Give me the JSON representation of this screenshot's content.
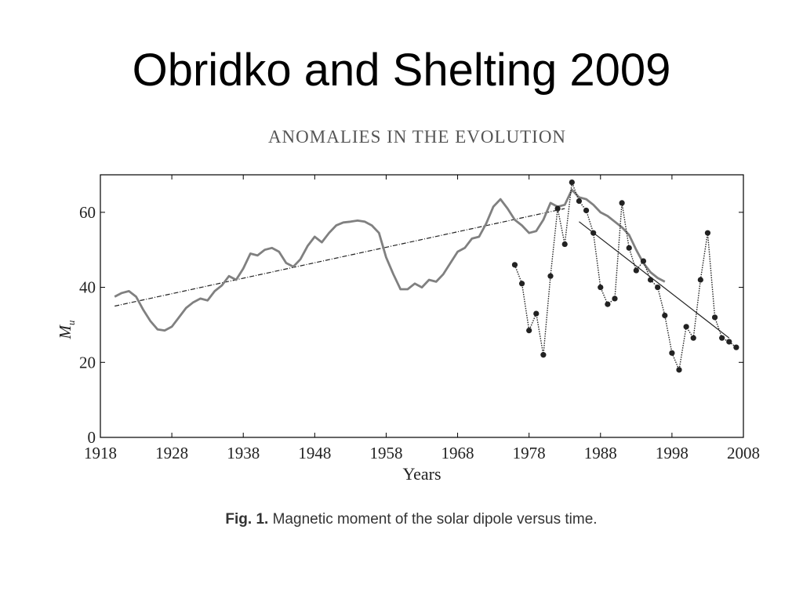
{
  "slide": {
    "title": "Obridko and Shelting 2009",
    "figure_header": "ANOMALIES IN THE EVOLUTION",
    "caption_label": "Fig. 1.",
    "caption_text": "Magnetic moment of the solar dipole versus time."
  },
  "colors": {
    "smooth_series": "#808080",
    "marker_series": "#222222",
    "axis": "#000000"
  },
  "chart_data": {
    "type": "line",
    "xlabel": "Years",
    "ylabel": "M_u",
    "xlim": [
      1918,
      2008
    ],
    "ylim": [
      0,
      70
    ],
    "xticks": [
      1918,
      1928,
      1938,
      1948,
      1958,
      1968,
      1978,
      1988,
      1998,
      2008
    ],
    "yticks": [
      0,
      20,
      40,
      60
    ],
    "grid": false,
    "series": [
      {
        "style": "smooth-gray",
        "points": [
          [
            1920,
            37.5
          ],
          [
            1921,
            38.5
          ],
          [
            1922,
            39
          ],
          [
            1923,
            37.5
          ],
          [
            1924,
            34
          ],
          [
            1925,
            31
          ],
          [
            1926,
            28.8
          ],
          [
            1927,
            28.5
          ],
          [
            1928,
            29.5
          ],
          [
            1929,
            32
          ],
          [
            1930,
            34.5
          ],
          [
            1931,
            36
          ],
          [
            1932,
            37
          ],
          [
            1933,
            36.5
          ],
          [
            1934,
            39
          ],
          [
            1935,
            40.5
          ],
          [
            1936,
            43
          ],
          [
            1937,
            42
          ],
          [
            1938,
            45
          ],
          [
            1939,
            49
          ],
          [
            1940,
            48.5
          ],
          [
            1941,
            50
          ],
          [
            1942,
            50.5
          ],
          [
            1943,
            49.5
          ],
          [
            1944,
            46.5
          ],
          [
            1945,
            45.5
          ],
          [
            1946,
            47.5
          ],
          [
            1947,
            51
          ],
          [
            1948,
            53.5
          ],
          [
            1949,
            52
          ],
          [
            1950,
            54.5
          ],
          [
            1951,
            56.5
          ],
          [
            1952,
            57.3
          ],
          [
            1953,
            57.5
          ],
          [
            1954,
            57.8
          ],
          [
            1955,
            57.5
          ],
          [
            1956,
            56.5
          ],
          [
            1957,
            54.5
          ],
          [
            1958,
            48
          ],
          [
            1959,
            43.5
          ],
          [
            1960,
            39.5
          ],
          [
            1961,
            39.5
          ],
          [
            1962,
            41
          ],
          [
            1963,
            40
          ],
          [
            1964,
            42
          ],
          [
            1965,
            41.5
          ],
          [
            1966,
            43.5
          ],
          [
            1967,
            46.5
          ],
          [
            1968,
            49.5
          ],
          [
            1969,
            50.5
          ],
          [
            1970,
            53
          ],
          [
            1971,
            53.5
          ],
          [
            1972,
            57
          ],
          [
            1973,
            61.5
          ],
          [
            1974,
            63.5
          ],
          [
            1975,
            61
          ],
          [
            1976,
            58
          ],
          [
            1977,
            56.5
          ],
          [
            1978,
            54.5
          ],
          [
            1979,
            55
          ],
          [
            1980,
            58
          ],
          [
            1981,
            62.5
          ],
          [
            1982,
            61.5
          ],
          [
            1983,
            62
          ],
          [
            1984,
            66
          ],
          [
            1985,
            64
          ],
          [
            1986,
            63.5
          ],
          [
            1987,
            62
          ],
          [
            1988,
            60
          ],
          [
            1989,
            59
          ],
          [
            1990,
            57.5
          ],
          [
            1991,
            56
          ],
          [
            1992,
            54
          ],
          [
            1993,
            50
          ],
          [
            1994,
            46.5
          ],
          [
            1995,
            44
          ],
          [
            1996,
            42.5
          ],
          [
            1997,
            41.5
          ]
        ]
      },
      {
        "style": "dotted-markers",
        "points": [
          [
            1976,
            46
          ],
          [
            1977,
            41
          ],
          [
            1978,
            28.5
          ],
          [
            1979,
            33
          ],
          [
            1980,
            22
          ],
          [
            1981,
            43
          ],
          [
            1982,
            61
          ],
          [
            1983,
            51.5
          ],
          [
            1984,
            68
          ],
          [
            1985,
            63
          ],
          [
            1986,
            60.5
          ],
          [
            1987,
            54.5
          ],
          [
            1988,
            40
          ],
          [
            1989,
            35.5
          ],
          [
            1990,
            37
          ],
          [
            1991,
            62.5
          ],
          [
            1992,
            50.5
          ],
          [
            1993,
            44.5
          ],
          [
            1994,
            47
          ],
          [
            1995,
            42
          ],
          [
            1996,
            40
          ],
          [
            1997,
            32.5
          ],
          [
            1998,
            22.5
          ],
          [
            1999,
            18
          ],
          [
            2000,
            29.5
          ],
          [
            2001,
            26.5
          ],
          [
            2002,
            42
          ],
          [
            2003,
            54.5
          ],
          [
            2004,
            32
          ],
          [
            2005,
            26.5
          ],
          [
            2006,
            25.5
          ],
          [
            2007,
            24
          ]
        ]
      }
    ],
    "trend_lines": [
      {
        "style": "dash-dot",
        "from": [
          1920,
          35
        ],
        "to": [
          1983,
          61
        ]
      },
      {
        "style": "solid-thin",
        "from": [
          1985,
          57.5
        ],
        "to": [
          2006,
          26.5
        ]
      }
    ]
  }
}
